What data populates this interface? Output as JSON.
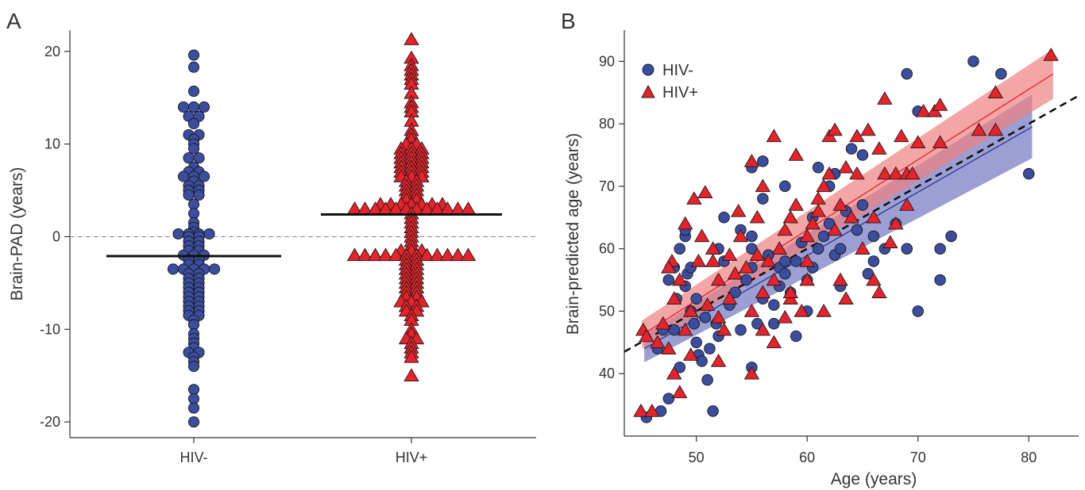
{
  "colors": {
    "hiv_neg": "#3b4d9e",
    "hiv_pos": "#e8222a",
    "hiv_neg_band": "#7b7fc4",
    "hiv_pos_band": "#f08080",
    "stroke": "#1a1a1a",
    "axis": "#333333"
  },
  "chart_data": [
    {
      "panel": "A",
      "type": "scatter",
      "subtype": "beeswarm",
      "ylabel": "Brain-PAD (years)",
      "ylim": [
        -21.7,
        22.3
      ],
      "yticks": [
        "20",
        "10",
        "0",
        "-10",
        "-20"
      ],
      "categories": [
        "HIV-",
        "HIV+"
      ],
      "reference_line": {
        "y": 0,
        "style": "dashed"
      },
      "series": [
        {
          "name": "HIV-",
          "marker": "circle",
          "mean": -2.1,
          "values": [
            19.6,
            18.3,
            15.7,
            14.0,
            14.0,
            14.0,
            13.0,
            13.0,
            12.2,
            11.0,
            11.0,
            10.5,
            10.0,
            9.5,
            8.5,
            8.5,
            7.5,
            7.0,
            7.0,
            6.5,
            6.5,
            6.5,
            6.0,
            5.5,
            5.5,
            5.0,
            5.0,
            4.5,
            4.5,
            3.5,
            2.5,
            1.5,
            1.0,
            0.5,
            0.3,
            0.3,
            0.3,
            0.3,
            0.0,
            0.0,
            -0.5,
            -0.5,
            -1.0,
            -1.0,
            -1.5,
            -1.5,
            -2.0,
            -2.0,
            -2.0,
            -2.5,
            -2.5,
            -3.0,
            -3.0,
            -3.5,
            -3.5,
            -3.5,
            -3.5,
            -3.5,
            -4.0,
            -4.0,
            -4.5,
            -4.5,
            -5.0,
            -5.0,
            -5.5,
            -5.5,
            -6.0,
            -6.0,
            -6.5,
            -6.5,
            -7.0,
            -7.0,
            -7.5,
            -7.5,
            -8.0,
            -8.0,
            -8.5,
            -8.5,
            -9.0,
            -9.5,
            -10.5,
            -11.0,
            -11.5,
            -12.0,
            -12.5,
            -12.5,
            -13.0,
            -13.5,
            -14.0,
            -16.5,
            -17.5,
            -18.5,
            -20.0
          ]
        },
        {
          "name": "HIV+",
          "marker": "triangle",
          "mean": 2.4,
          "values": [
            21.3,
            19.3,
            18.5,
            18.0,
            17.5,
            17.0,
            16.5,
            15.5,
            14.5,
            14.0,
            13.5,
            12.5,
            11.5,
            11.0,
            10.5,
            10.0,
            10.0,
            9.5,
            9.5,
            9.5,
            9.0,
            9.0,
            9.0,
            8.5,
            8.5,
            8.5,
            8.0,
            8.0,
            8.0,
            7.5,
            7.5,
            7.5,
            7.0,
            7.0,
            7.0,
            6.5,
            6.5,
            6.5,
            6.0,
            6.0,
            5.5,
            5.5,
            5.0,
            5.0,
            4.5,
            4.5,
            4.0,
            4.0,
            3.5,
            3.5,
            3.5,
            3.5,
            3.5,
            3.5,
            3.5,
            3.0,
            3.0,
            3.0,
            3.0,
            3.0,
            3.0,
            3.0,
            3.0,
            3.0,
            3.0,
            3.0,
            3.0,
            2.5,
            2.0,
            1.5,
            1.0,
            0.5,
            0.0,
            -0.5,
            -1.0,
            -1.5,
            -1.5,
            -1.5,
            -2.0,
            -2.0,
            -2.0,
            -2.0,
            -2.0,
            -2.0,
            -2.0,
            -2.0,
            -2.0,
            -2.0,
            -2.0,
            -2.0,
            -2.5,
            -2.5,
            -3.0,
            -3.0,
            -3.5,
            -3.5,
            -4.0,
            -4.0,
            -4.5,
            -4.5,
            -5.0,
            -5.0,
            -5.5,
            -5.5,
            -6.0,
            -6.0,
            -6.5,
            -6.5,
            -7.0,
            -7.0,
            -7.0,
            -7.5,
            -7.5,
            -8.0,
            -8.0,
            -8.5,
            -9.0,
            -10.0,
            -10.5,
            -11.0,
            -11.0,
            -11.5,
            -12.0,
            -12.5,
            -13.0,
            -15.0
          ]
        }
      ]
    },
    {
      "panel": "B",
      "type": "scatter",
      "xlabel": "Age (years)",
      "ylabel": "Brain-predicted age (years)",
      "xlim": [
        43.5,
        84.5
      ],
      "ylim": [
        30,
        95
      ],
      "xticks": [
        "50",
        "60",
        "70",
        "80"
      ],
      "yticks": [
        "90",
        "80",
        "70",
        "60",
        "50",
        "40"
      ],
      "legend": {
        "position": "top-left",
        "entries": [
          "HIV-",
          "HIV+"
        ]
      },
      "identity_line": {
        "style": "dashed",
        "x": [
          43.5,
          84.5
        ],
        "y": [
          43.5,
          84.5
        ]
      },
      "fits": [
        {
          "series": "HIV-",
          "x": [
            45.3,
            80.3
          ],
          "y": [
            44.0,
            79.5
          ],
          "band_lower": [
            41.8,
            74.5
          ],
          "band_upper": [
            46.2,
            84.7
          ]
        },
        {
          "series": "HIV+",
          "x": [
            45.1,
            82.2
          ],
          "y": [
            46.2,
            88.0
          ],
          "band_lower": [
            44.0,
            84.0
          ],
          "band_upper": [
            48.5,
            92.0
          ]
        }
      ],
      "series": [
        {
          "name": "HIV-",
          "marker": "circle",
          "points": [
            [
              45.5,
              33
            ],
            [
              46.8,
              34
            ],
            [
              47.5,
              36
            ],
            [
              46.5,
              44
            ],
            [
              47.0,
              47
            ],
            [
              48.0,
              47
            ],
            [
              48.2,
              52
            ],
            [
              47.5,
              55
            ],
            [
              48.0,
              57
            ],
            [
              48.5,
              60
            ],
            [
              49.0,
              62
            ],
            [
              49.2,
              56
            ],
            [
              49.5,
              50
            ],
            [
              49.8,
              48
            ],
            [
              50.0,
              45
            ],
            [
              50.2,
              43
            ],
            [
              50.5,
              42
            ],
            [
              49.0,
              54
            ],
            [
              49.5,
              57
            ],
            [
              50.0,
              52
            ],
            [
              50.8,
              49
            ],
            [
              51.0,
              39
            ],
            [
              51.2,
              44
            ],
            [
              51.5,
              34
            ],
            [
              51.8,
              48
            ],
            [
              52.0,
              46
            ],
            [
              52.5,
              58
            ],
            [
              52.5,
              65
            ],
            [
              53.0,
              51
            ],
            [
              53.5,
              53
            ],
            [
              54.0,
              47
            ],
            [
              54.5,
              55
            ],
            [
              55.0,
              41
            ],
            [
              55.0,
              57
            ],
            [
              55.0,
              60
            ],
            [
              55.0,
              62
            ],
            [
              55.5,
              48
            ],
            [
              56.0,
              52
            ],
            [
              56.0,
              68
            ],
            [
              56.5,
              59
            ],
            [
              57.0,
              48
            ],
            [
              57.0,
              51
            ],
            [
              57.5,
              54
            ],
            [
              57.5,
              57
            ],
            [
              58.0,
              58
            ],
            [
              58.0,
              56
            ],
            [
              58.5,
              53
            ],
            [
              59.0,
              46
            ],
            [
              59.0,
              58
            ],
            [
              59.5,
              61
            ],
            [
              60.0,
              50
            ],
            [
              60.0,
              55
            ],
            [
              60.5,
              57
            ],
            [
              61.0,
              60
            ],
            [
              61.5,
              62
            ],
            [
              62.0,
              64
            ],
            [
              62.0,
              70
            ],
            [
              62.5,
              72
            ],
            [
              62.5,
              59
            ],
            [
              63.0,
              54
            ],
            [
              63.0,
              60
            ],
            [
              63.5,
              66
            ],
            [
              64.0,
              76
            ],
            [
              64.5,
              63
            ],
            [
              65.0,
              67
            ],
            [
              65.0,
              75
            ],
            [
              65.5,
              56
            ],
            [
              66.0,
              62
            ],
            [
              67.0,
              60
            ],
            [
              68.0,
              64
            ],
            [
              69.0,
              60
            ],
            [
              69.0,
              88
            ],
            [
              70.0,
              82
            ],
            [
              70.0,
              50
            ],
            [
              72.0,
              55
            ],
            [
              72.0,
              60
            ],
            [
              73.0,
              62
            ],
            [
              75.0,
              90
            ],
            [
              77.5,
              88
            ],
            [
              80.0,
              72
            ],
            [
              55.0,
              73
            ],
            [
              56.0,
              74
            ],
            [
              58.0,
              70
            ],
            [
              61.0,
              73
            ],
            [
              49.0,
              63
            ],
            [
              48.5,
              41
            ],
            [
              52.0,
              60
            ],
            [
              54.0,
              63
            ],
            [
              60.5,
              65
            ],
            [
              66.0,
              58
            ]
          ]
        },
        {
          "name": "HIV+",
          "marker": "triangle",
          "points": [
            [
              45.0,
              34
            ],
            [
              46.0,
              34
            ],
            [
              45.2,
              47
            ],
            [
              45.5,
              46
            ],
            [
              46.5,
              45
            ],
            [
              47.0,
              48
            ],
            [
              47.5,
              44
            ],
            [
              47.8,
              58
            ],
            [
              48.0,
              40
            ],
            [
              48.5,
              37
            ],
            [
              48.0,
              52
            ],
            [
              48.5,
              55
            ],
            [
              49.0,
              47
            ],
            [
              49.0,
              64
            ],
            [
              49.5,
              50
            ],
            [
              49.8,
              68
            ],
            [
              50.2,
              58
            ],
            [
              50.5,
              62
            ],
            [
              50.8,
              69
            ],
            [
              51.0,
              51
            ],
            [
              51.5,
              60
            ],
            [
              52.0,
              42
            ],
            [
              52.0,
              55
            ],
            [
              52.5,
              47
            ],
            [
              53.0,
              52
            ],
            [
              53.5,
              56
            ],
            [
              53.8,
              66
            ],
            [
              54.0,
              62
            ],
            [
              54.5,
              57
            ],
            [
              55.0,
              40
            ],
            [
              55.0,
              50
            ],
            [
              55.0,
              74
            ],
            [
              55.5,
              59
            ],
            [
              55.5,
              65
            ],
            [
              56.0,
              47
            ],
            [
              56.0,
              53
            ],
            [
              56.5,
              58
            ],
            [
              57.0,
              45
            ],
            [
              57.0,
              55
            ],
            [
              57.0,
              78
            ],
            [
              57.5,
              60
            ],
            [
              58.0,
              63
            ],
            [
              58.0,
              49
            ],
            [
              58.5,
              52
            ],
            [
              58.5,
              65
            ],
            [
              59.0,
              75
            ],
            [
              59.0,
              67
            ],
            [
              59.5,
              50
            ],
            [
              60.0,
              55
            ],
            [
              60.0,
              62
            ],
            [
              60.5,
              64
            ],
            [
              61.0,
              68
            ],
            [
              61.5,
              50
            ],
            [
              61.5,
              70
            ],
            [
              62.0,
              72
            ],
            [
              62.0,
              78
            ],
            [
              62.5,
              63
            ],
            [
              62.5,
              79
            ],
            [
              63.0,
              55
            ],
            [
              63.0,
              67
            ],
            [
              63.5,
              52
            ],
            [
              63.5,
              73
            ],
            [
              64.0,
              65
            ],
            [
              64.5,
              78
            ],
            [
              65.0,
              60
            ],
            [
              65.5,
              79
            ],
            [
              66.0,
              55
            ],
            [
              66.0,
              65
            ],
            [
              66.5,
              76
            ],
            [
              66.5,
              53
            ],
            [
              67.0,
              72
            ],
            [
              67.0,
              84
            ],
            [
              67.5,
              61
            ],
            [
              68.0,
              64
            ],
            [
              68.0,
              72
            ],
            [
              68.5,
              78
            ],
            [
              69.0,
              67
            ],
            [
              69.0,
              72
            ],
            [
              69.5,
              72
            ],
            [
              70.0,
              77
            ],
            [
              70.5,
              82
            ],
            [
              71.5,
              82
            ],
            [
              72.0,
              83
            ],
            [
              72.0,
              77
            ],
            [
              75.5,
              79
            ],
            [
              77.0,
              79
            ],
            [
              77.0,
              85
            ],
            [
              82.0,
              91
            ],
            [
              52.0,
              49
            ],
            [
              53.0,
              59
            ],
            [
              56.0,
              70
            ],
            [
              60.0,
              58
            ],
            [
              64.5,
              72
            ],
            [
              58.5,
              53
            ],
            [
              61.0,
              66
            ],
            [
              49.5,
              43
            ],
            [
              47.5,
              57
            ],
            [
              51.5,
              58
            ]
          ]
        }
      ]
    }
  ]
}
